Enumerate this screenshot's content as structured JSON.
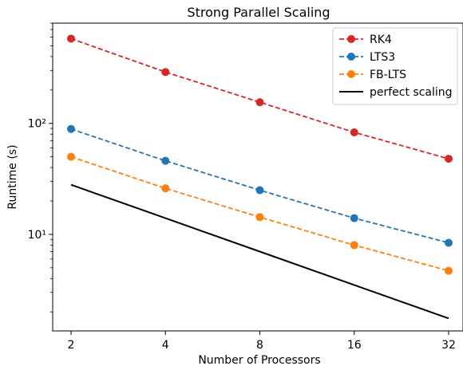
{
  "chart_data": {
    "type": "line",
    "title": "Strong Parallel Scaling",
    "xlabel": "Number of Processors",
    "ylabel": "Runtime (s)",
    "x_scale": "log2",
    "y_scale": "log10",
    "x": [
      2,
      4,
      8,
      16,
      32
    ],
    "x_tick_labels": [
      "2",
      "4",
      "8",
      "16",
      "32"
    ],
    "y_ticks": [
      10,
      100
    ],
    "y_tick_labels": [
      "10¹",
      "10²"
    ],
    "ylim": [
      1.35,
      800
    ],
    "legend_position": "top-right",
    "grid": false,
    "series": [
      {
        "name": "RK4",
        "values": [
          580,
          290,
          155,
          83,
          48
        ],
        "color": "#d62728",
        "style": "dashed",
        "marker": "circle"
      },
      {
        "name": "LTS3",
        "values": [
          89,
          46,
          25,
          14,
          8.4
        ],
        "color": "#1f77b4",
        "style": "dashed",
        "marker": "circle"
      },
      {
        "name": "FB-LTS",
        "values": [
          50,
          26,
          14.3,
          8.0,
          4.7
        ],
        "color": "#ff7f0e",
        "style": "dashed",
        "marker": "circle"
      },
      {
        "name": "perfect scaling",
        "values": [
          28,
          14,
          7,
          3.5,
          1.75
        ],
        "color": "#000000",
        "style": "solid",
        "marker": "none"
      }
    ]
  }
}
